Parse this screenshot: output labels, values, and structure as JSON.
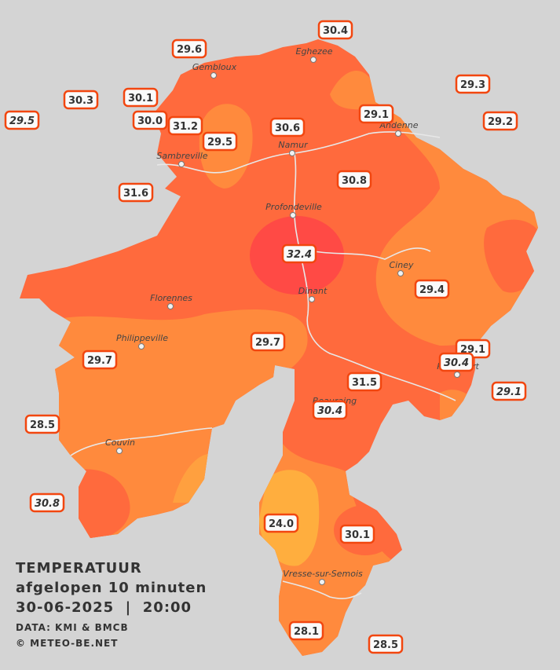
{
  "title": "TEMPERATUUR",
  "subtitle": "afgelopen 10 minuten",
  "datetime": "30-06-2025  |  20:00",
  "credits": [
    "DATA: KMI & BMCB",
    "© METEO-BE.NET"
  ],
  "towns": [
    "Eghezee",
    "Gembloux",
    "Andenne",
    "Namur",
    "Sambreville",
    "Profondeville",
    "Ciney",
    "Dinant",
    "Florennes",
    "Philippeville",
    "Rochefort",
    "Beauraing",
    "Couvin",
    "Vresse-sur-Semois"
  ],
  "stations": [
    {
      "value": "30.4",
      "italic": false
    },
    {
      "value": "29.6",
      "italic": false
    },
    {
      "value": "29.3",
      "italic": false
    },
    {
      "value": "30.3",
      "italic": false
    },
    {
      "value": "30.1",
      "italic": false
    },
    {
      "value": "29.5",
      "italic": true
    },
    {
      "value": "30.0",
      "italic": false
    },
    {
      "value": "31.2",
      "italic": false
    },
    {
      "value": "30.6",
      "italic": false
    },
    {
      "value": "29.1",
      "italic": false
    },
    {
      "value": "29.2",
      "italic": false
    },
    {
      "value": "29.5",
      "italic": false
    },
    {
      "value": "30.8",
      "italic": false
    },
    {
      "value": "31.6",
      "italic": false
    },
    {
      "value": "32.4",
      "italic": true
    },
    {
      "value": "29.4",
      "italic": false
    },
    {
      "value": "29.7",
      "italic": false
    },
    {
      "value": "29.7",
      "italic": false
    },
    {
      "value": "29.1",
      "italic": false
    },
    {
      "value": "30.4",
      "italic": true
    },
    {
      "value": "31.5",
      "italic": false
    },
    {
      "value": "29.1",
      "italic": true
    },
    {
      "value": "30.4",
      "italic": true
    },
    {
      "value": "28.5",
      "italic": false
    },
    {
      "value": "30.8",
      "italic": true
    },
    {
      "value": "24.0",
      "italic": false
    },
    {
      "value": "30.1",
      "italic": false
    },
    {
      "value": "28.1",
      "italic": false
    },
    {
      "value": "28.5",
      "italic": false
    }
  ]
}
